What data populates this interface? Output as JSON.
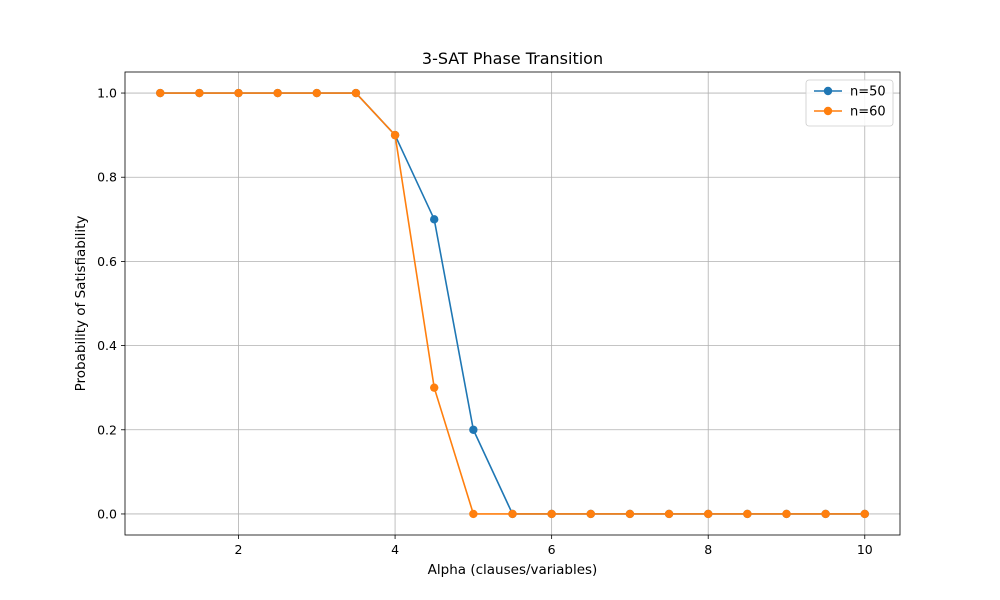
{
  "chart_data": {
    "type": "line",
    "title": "3-SAT Phase Transition",
    "xlabel": "Alpha (clauses/variables)",
    "ylabel": "Probability of Satisfiability",
    "xlim": [
      0.55,
      10.45
    ],
    "ylim": [
      -0.05,
      1.05
    ],
    "xticks": [
      2,
      4,
      6,
      8,
      10
    ],
    "yticks": [
      0.0,
      0.2,
      0.4,
      0.6,
      0.8,
      1.0
    ],
    "xtick_labels": [
      "2",
      "4",
      "6",
      "8",
      "10"
    ],
    "ytick_labels": [
      "0.0",
      "0.2",
      "0.4",
      "0.6",
      "0.8",
      "1.0"
    ],
    "grid": true,
    "legend_position": "top-right",
    "x": [
      1,
      1.5,
      2,
      2.5,
      3,
      3.5,
      4,
      4.5,
      5,
      5.5,
      6,
      6.5,
      7,
      7.5,
      8,
      8.5,
      9,
      9.5,
      10
    ],
    "series": [
      {
        "name": "n=50",
        "color": "#1f77b4",
        "values": [
          1.0,
          1.0,
          1.0,
          1.0,
          1.0,
          1.0,
          0.9,
          0.7,
          0.2,
          0.0,
          0.0,
          0.0,
          0.0,
          0.0,
          0.0,
          0.0,
          0.0,
          0.0,
          0.0
        ]
      },
      {
        "name": "n=60",
        "color": "#ff7f0e",
        "values": [
          1.0,
          1.0,
          1.0,
          1.0,
          1.0,
          1.0,
          0.9,
          0.3,
          0.0,
          0.0,
          0.0,
          0.0,
          0.0,
          0.0,
          0.0,
          0.0,
          0.0,
          0.0,
          0.0
        ]
      }
    ]
  }
}
